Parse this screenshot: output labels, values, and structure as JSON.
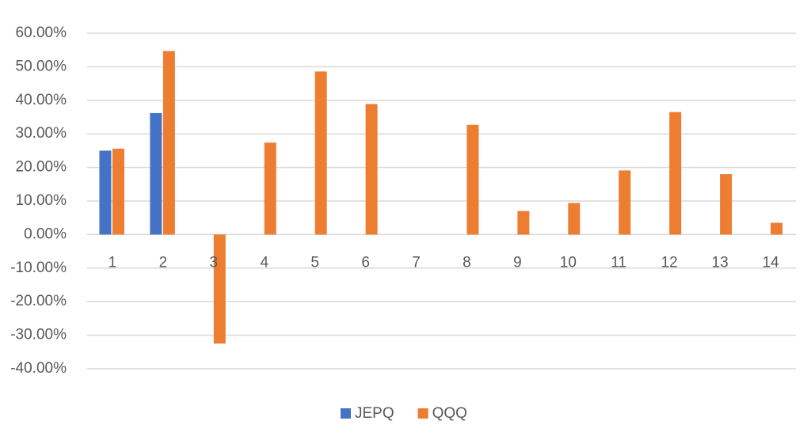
{
  "chart_data": {
    "type": "bar",
    "categories": [
      "1",
      "2",
      "3",
      "4",
      "5",
      "6",
      "7",
      "8",
      "9",
      "10",
      "11",
      "12",
      "13",
      "14"
    ],
    "series": [
      {
        "name": "JEPQ",
        "color": "#4472c4",
        "values": [
          25.0,
          36.2,
          null,
          null,
          null,
          null,
          null,
          null,
          null,
          null,
          null,
          null,
          null,
          null
        ]
      },
      {
        "name": "QQQ",
        "color": "#ed7d31",
        "values": [
          25.6,
          54.7,
          -32.5,
          27.4,
          48.6,
          38.9,
          null,
          32.7,
          7.0,
          9.4,
          19.1,
          36.5,
          18.0,
          3.5
        ]
      }
    ],
    "ylim": [
      -40,
      60
    ],
    "yticks": [
      {
        "value": 60,
        "label": "60.00%"
      },
      {
        "value": 50,
        "label": "50.00%"
      },
      {
        "value": 40,
        "label": "40.00%"
      },
      {
        "value": 30,
        "label": "30.00%"
      },
      {
        "value": 20,
        "label": "20.00%"
      },
      {
        "value": 10,
        "label": "10.00%"
      },
      {
        "value": 0,
        "label": "0.00%"
      },
      {
        "value": -10,
        "label": "-10.00%"
      },
      {
        "value": -20,
        "label": "-20.00%"
      },
      {
        "value": -30,
        "label": "-30.00%"
      },
      {
        "value": -40,
        "label": "-40.00%"
      }
    ],
    "grid": true,
    "legend": "bottom"
  }
}
